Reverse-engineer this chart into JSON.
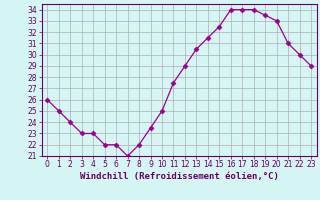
{
  "x": [
    0,
    1,
    2,
    3,
    4,
    5,
    6,
    7,
    8,
    9,
    10,
    11,
    12,
    13,
    14,
    15,
    16,
    17,
    18,
    19,
    20,
    21,
    22,
    23
  ],
  "y": [
    26,
    25,
    24,
    23,
    23,
    22,
    22,
    21,
    22,
    23.5,
    25,
    27.5,
    29,
    30.5,
    31.5,
    32.5,
    34,
    34,
    34,
    33.5,
    33,
    31,
    30,
    29
  ],
  "line_color": "#990099",
  "marker": "D",
  "marker_size": 2.5,
  "bg_color": "#d6f5f5",
  "grid_color": "#b0b0b0",
  "xlabel": "Windchill (Refroidissement éolien,°C)",
  "ylabel": "",
  "ylim": [
    21,
    34.5
  ],
  "xlim": [
    -0.5,
    23.5
  ],
  "yticks": [
    21,
    22,
    23,
    24,
    25,
    26,
    27,
    28,
    29,
    30,
    31,
    32,
    33,
    34
  ],
  "xticks": [
    0,
    1,
    2,
    3,
    4,
    5,
    6,
    7,
    8,
    9,
    10,
    11,
    12,
    13,
    14,
    15,
    16,
    17,
    18,
    19,
    20,
    21,
    22,
    23
  ],
  "tick_fontsize": 5.5,
  "xlabel_fontsize": 6.5,
  "label_color": "#660066",
  "axis_color": "#660066",
  "linewidth": 0.9
}
